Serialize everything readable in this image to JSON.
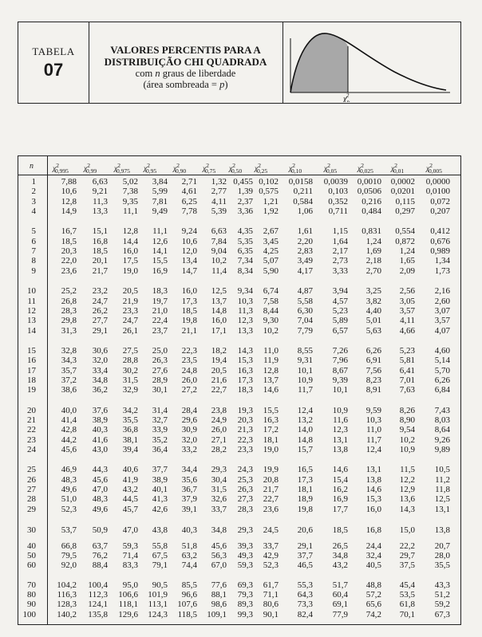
{
  "header": {
    "table_label": "TABELA",
    "table_number": "07",
    "title_line1": "VALORES PERCENTIS PARA A",
    "title_line2": "DISTRIBUIÇÃO CHI QUADRADA",
    "subtitle_pre": "com ",
    "subtitle_var": "n",
    "subtitle_post": " graus de liberdade",
    "note_pre": "(área sombreada = ",
    "note_var": "p",
    "note_post": ")",
    "figure_label": "χ",
    "figure_label_sub": "p",
    "figure_label_sup": "2"
  },
  "table": {
    "n_header": "n",
    "columns": [
      "0,995",
      "0,99",
      "0,975",
      "0,95",
      "0,90",
      "0,75",
      "0,50",
      "0,25",
      "0,10",
      "0,05",
      "0,025",
      "0,01",
      "0,005"
    ],
    "rows": [
      [
        "1",
        "7,88",
        "6,63",
        "5,02",
        "3,84",
        "2,71",
        "1,32",
        "0,455",
        "0,102",
        "0,0158",
        "0,0039",
        "0,0010",
        "0,0002",
        "0,0000"
      ],
      [
        "2",
        "10,6",
        "9,21",
        "7,38",
        "5,99",
        "4,61",
        "2,77",
        "1,39",
        "0,575",
        "0,211",
        "0,103",
        "0,0506",
        "0,0201",
        "0,0100"
      ],
      [
        "3",
        "12,8",
        "11,3",
        "9,35",
        "7,81",
        "6,25",
        "4,11",
        "2,37",
        "1,21",
        "0,584",
        "0,352",
        "0,216",
        "0,115",
        "0,072"
      ],
      [
        "4",
        "14,9",
        "13,3",
        "11,1",
        "9,49",
        "7,78",
        "5,39",
        "3,36",
        "1,92",
        "1,06",
        "0,711",
        "0,484",
        "0,297",
        "0,207"
      ],
      [
        "5",
        "16,7",
        "15,1",
        "12,8",
        "11,1",
        "9,24",
        "6,63",
        "4,35",
        "2,67",
        "1,61",
        "1,15",
        "0,831",
        "0,554",
        "0,412"
      ],
      [
        "6",
        "18,5",
        "16,8",
        "14,4",
        "12,6",
        "10,6",
        "7,84",
        "5,35",
        "3,45",
        "2,20",
        "1,64",
        "1,24",
        "0,872",
        "0,676"
      ],
      [
        "7",
        "20,3",
        "18,5",
        "16,0",
        "14,1",
        "12,0",
        "9,04",
        "6,35",
        "4,25",
        "2,83",
        "2,17",
        "1,69",
        "1,24",
        "0,989"
      ],
      [
        "8",
        "22,0",
        "20,1",
        "17,5",
        "15,5",
        "13,4",
        "10,2",
        "7,34",
        "5,07",
        "3,49",
        "2,73",
        "2,18",
        "1,65",
        "1,34"
      ],
      [
        "9",
        "23,6",
        "21,7",
        "19,0",
        "16,9",
        "14,7",
        "11,4",
        "8,34",
        "5,90",
        "4,17",
        "3,33",
        "2,70",
        "2,09",
        "1,73"
      ],
      [
        "10",
        "25,2",
        "23,2",
        "20,5",
        "18,3",
        "16,0",
        "12,5",
        "9,34",
        "6,74",
        "4,87",
        "3,94",
        "3,25",
        "2,56",
        "2,16"
      ],
      [
        "11",
        "26,8",
        "24,7",
        "21,9",
        "19,7",
        "17,3",
        "13,7",
        "10,3",
        "7,58",
        "5,58",
        "4,57",
        "3,82",
        "3,05",
        "2,60"
      ],
      [
        "12",
        "28,3",
        "26,2",
        "23,3",
        "21,0",
        "18,5",
        "14,8",
        "11,3",
        "8,44",
        "6,30",
        "5,23",
        "4,40",
        "3,57",
        "3,07"
      ],
      [
        "13",
        "29,8",
        "27,7",
        "24,7",
        "22,4",
        "19,8",
        "16,0",
        "12,3",
        "9,30",
        "7,04",
        "5,89",
        "5,01",
        "4,11",
        "3,57"
      ],
      [
        "14",
        "31,3",
        "29,1",
        "26,1",
        "23,7",
        "21,1",
        "17,1",
        "13,3",
        "10,2",
        "7,79",
        "6,57",
        "5,63",
        "4,66",
        "4,07"
      ],
      [
        "15",
        "32,8",
        "30,6",
        "27,5",
        "25,0",
        "22,3",
        "18,2",
        "14,3",
        "11,0",
        "8,55",
        "7,26",
        "6,26",
        "5,23",
        "4,60"
      ],
      [
        "16",
        "34,3",
        "32,0",
        "28,8",
        "26,3",
        "23,5",
        "19,4",
        "15,3",
        "11,9",
        "9,31",
        "7,96",
        "6,91",
        "5,81",
        "5,14"
      ],
      [
        "17",
        "35,7",
        "33,4",
        "30,2",
        "27,6",
        "24,8",
        "20,5",
        "16,3",
        "12,8",
        "10,1",
        "8,67",
        "7,56",
        "6,41",
        "5,70"
      ],
      [
        "18",
        "37,2",
        "34,8",
        "31,5",
        "28,9",
        "26,0",
        "21,6",
        "17,3",
        "13,7",
        "10,9",
        "9,39",
        "8,23",
        "7,01",
        "6,26"
      ],
      [
        "19",
        "38,6",
        "36,2",
        "32,9",
        "30,1",
        "27,2",
        "22,7",
        "18,3",
        "14,6",
        "11,7",
        "10,1",
        "8,91",
        "7,63",
        "6,84"
      ],
      [
        "20",
        "40,0",
        "37,6",
        "34,2",
        "31,4",
        "28,4",
        "23,8",
        "19,3",
        "15,5",
        "12,4",
        "10,9",
        "9,59",
        "8,26",
        "7,43"
      ],
      [
        "21",
        "41,4",
        "38,9",
        "35,5",
        "32,7",
        "29,6",
        "24,9",
        "20,3",
        "16,3",
        "13,2",
        "11,6",
        "10,3",
        "8,90",
        "8,03"
      ],
      [
        "22",
        "42,8",
        "40,3",
        "36,8",
        "33,9",
        "30,9",
        "26,0",
        "21,3",
        "17,2",
        "14,0",
        "12,3",
        "11,0",
        "9,54",
        "8,64"
      ],
      [
        "23",
        "44,2",
        "41,6",
        "38,1",
        "35,2",
        "32,0",
        "27,1",
        "22,3",
        "18,1",
        "14,8",
        "13,1",
        "11,7",
        "10,2",
        "9,26"
      ],
      [
        "24",
        "45,6",
        "43,0",
        "39,4",
        "36,4",
        "33,2",
        "28,2",
        "23,3",
        "19,0",
        "15,7",
        "13,8",
        "12,4",
        "10,9",
        "9,89"
      ],
      [
        "25",
        "46,9",
        "44,3",
        "40,6",
        "37,7",
        "34,4",
        "29,3",
        "24,3",
        "19,9",
        "16,5",
        "14,6",
        "13,1",
        "11,5",
        "10,5"
      ],
      [
        "26",
        "48,3",
        "45,6",
        "41,9",
        "38,9",
        "35,6",
        "30,4",
        "25,3",
        "20,8",
        "17,3",
        "15,4",
        "13,8",
        "12,2",
        "11,2"
      ],
      [
        "27",
        "49,6",
        "47,0",
        "43,2",
        "40,1",
        "36,7",
        "31,5",
        "26,3",
        "21,7",
        "18,1",
        "16,2",
        "14,6",
        "12,9",
        "11,8"
      ],
      [
        "28",
        "51,0",
        "48,3",
        "44,5",
        "41,3",
        "37,9",
        "32,6",
        "27,3",
        "22,7",
        "18,9",
        "16,9",
        "15,3",
        "13,6",
        "12,5"
      ],
      [
        "29",
        "52,3",
        "49,6",
        "45,7",
        "42,6",
        "39,1",
        "33,7",
        "28,3",
        "23,6",
        "19,8",
        "17,7",
        "16,0",
        "14,3",
        "13,1"
      ],
      [
        "30",
        "53,7",
        "50,9",
        "47,0",
        "43,8",
        "40,3",
        "34,8",
        "29,3",
        "24,5",
        "20,6",
        "18,5",
        "16,8",
        "15,0",
        "13,8"
      ],
      [
        "40",
        "66,8",
        "63,7",
        "59,3",
        "55,8",
        "51,8",
        "45,6",
        "39,3",
        "33,7",
        "29,1",
        "26,5",
        "24,4",
        "22,2",
        "20,7"
      ],
      [
        "50",
        "79,5",
        "76,2",
        "71,4",
        "67,5",
        "63,2",
        "56,3",
        "49,3",
        "42,9",
        "37,7",
        "34,8",
        "32,4",
        "29,7",
        "28,0"
      ],
      [
        "60",
        "92,0",
        "88,4",
        "83,3",
        "79,1",
        "74,4",
        "67,0",
        "59,3",
        "52,3",
        "46,5",
        "43,2",
        "40,5",
        "37,5",
        "35,5"
      ],
      [
        "70",
        "104,2",
        "100,4",
        "95,0",
        "90,5",
        "85,5",
        "77,6",
        "69,3",
        "61,7",
        "55,3",
        "51,7",
        "48,8",
        "45,4",
        "43,3"
      ],
      [
        "80",
        "116,3",
        "112,3",
        "106,6",
        "101,9",
        "96,6",
        "88,1",
        "79,3",
        "71,1",
        "64,3",
        "60,4",
        "57,2",
        "53,5",
        "51,2"
      ],
      [
        "90",
        "128,3",
        "124,1",
        "118,1",
        "113,1",
        "107,6",
        "98,6",
        "89,3",
        "80,6",
        "73,3",
        "69,1",
        "65,6",
        "61,8",
        "59,2"
      ],
      [
        "100",
        "140,2",
        "135,8",
        "129,6",
        "124,3",
        "118,5",
        "109,1",
        "99,3",
        "90,1",
        "82,4",
        "77,9",
        "74,2",
        "70,1",
        "67,3"
      ]
    ]
  },
  "colors": {
    "ink": "#1a1a1a",
    "paper": "#f3f2ee",
    "shade": "#a8a8a8"
  }
}
